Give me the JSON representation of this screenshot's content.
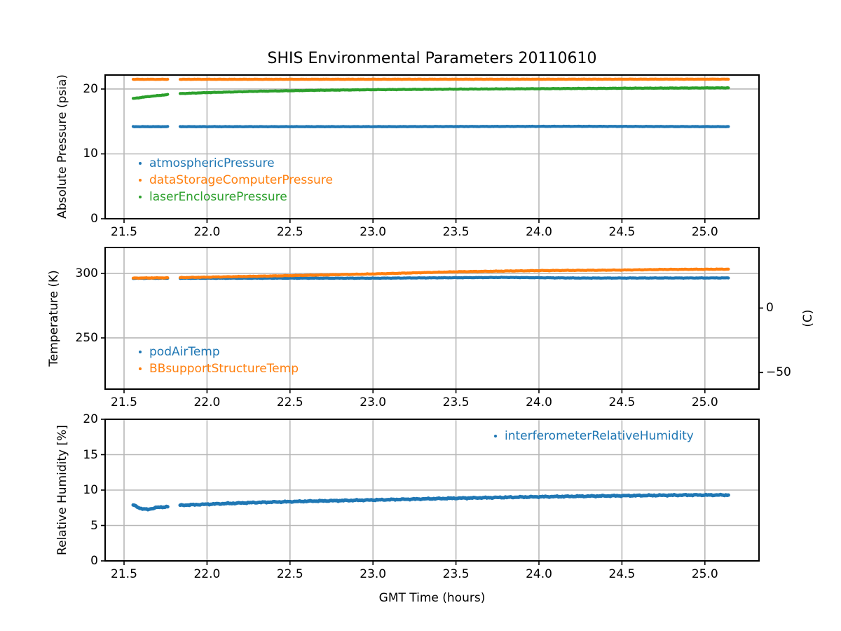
{
  "title": "SHIS Environmental Parameters 20110610",
  "xlabel": "GMT Time (hours)",
  "colors": {
    "blue": "#1f77b4",
    "orange": "#ff7f0e",
    "green": "#2ca02c",
    "grid": "#b8b8b8",
    "axis": "#000000"
  },
  "xlim": [
    21.386,
    25.326
  ],
  "xticks": [
    {
      "v": 21.5,
      "label": "21.5"
    },
    {
      "v": 22.0,
      "label": "22.0"
    },
    {
      "v": 22.5,
      "label": "22.5"
    },
    {
      "v": 23.0,
      "label": "23.0"
    },
    {
      "v": 23.5,
      "label": "23.5"
    },
    {
      "v": 24.0,
      "label": "24.0"
    },
    {
      "v": 24.5,
      "label": "24.5"
    },
    {
      "v": 25.0,
      "label": "25.0"
    }
  ],
  "gap": [
    21.766,
    21.838
  ],
  "chart_data": [
    {
      "type": "line",
      "title": "SHIS Environmental Parameters 20110610",
      "ylabel": "Absolute Pressure (psia)",
      "ylim": [
        0,
        22.16
      ],
      "yticks": [
        {
          "v": 0,
          "label": "0"
        },
        {
          "v": 10,
          "label": "10"
        },
        {
          "v": 20,
          "label": "20"
        }
      ],
      "x_range": [
        21.555,
        25.143
      ],
      "legend_position": "lower left inside",
      "series": [
        {
          "name": "atmosphericPressure",
          "color": "#1f77b4",
          "points": [
            [
              21.555,
              14.2
            ],
            [
              23.0,
              14.2
            ],
            [
              24.2,
              14.25
            ],
            [
              25.143,
              14.2
            ]
          ]
        },
        {
          "name": "dataStorageComputerPressure",
          "color": "#ff7f0e",
          "points": [
            [
              21.555,
              21.5
            ],
            [
              25.143,
              21.52
            ]
          ]
        },
        {
          "name": "laserEnclosurePressure",
          "color": "#2ca02c",
          "points": [
            [
              21.555,
              18.55
            ],
            [
              21.65,
              18.85
            ],
            [
              21.766,
              19.15
            ],
            [
              21.838,
              19.3
            ],
            [
              22.0,
              19.45
            ],
            [
              22.3,
              19.65
            ],
            [
              22.65,
              19.8
            ],
            [
              23.0,
              19.9
            ],
            [
              23.5,
              19.98
            ],
            [
              24.0,
              20.05
            ],
            [
              24.5,
              20.12
            ],
            [
              25.143,
              20.18
            ]
          ]
        }
      ]
    },
    {
      "type": "line",
      "ylabel": "Temperature (K)",
      "ylabel_right": "(C)",
      "ylim": [
        210.3,
        320.1
      ],
      "yticks": [
        {
          "v": 250,
          "label": "250"
        },
        {
          "v": 300,
          "label": "300"
        }
      ],
      "yticks_right": [
        {
          "v": 273.15,
          "label": "0"
        },
        {
          "v": 223.15,
          "label": "−50"
        }
      ],
      "x_range": [
        21.555,
        25.143
      ],
      "legend_position": "lower left inside",
      "series": [
        {
          "name": "podAirTemp",
          "color": "#1f77b4",
          "points": [
            [
              21.555,
              296.2
            ],
            [
              22.5,
              296.3
            ],
            [
              23.0,
              296.3
            ],
            [
              23.8,
              296.9
            ],
            [
              24.25,
              296.4
            ],
            [
              25.143,
              296.5
            ]
          ]
        },
        {
          "name": "BBsupportStructureTemp",
          "color": "#ff7f0e",
          "points": [
            [
              21.555,
              296.4
            ],
            [
              21.766,
              296.6
            ],
            [
              21.838,
              296.8
            ],
            [
              22.0,
              297.1
            ],
            [
              22.5,
              298.3
            ],
            [
              23.0,
              299.6
            ],
            [
              23.5,
              301.3
            ],
            [
              24.0,
              302.2
            ],
            [
              24.5,
              302.6
            ],
            [
              24.75,
              303.1
            ],
            [
              25.143,
              303.3
            ]
          ]
        }
      ]
    },
    {
      "type": "line",
      "ylabel": "Relative Humidity [%]",
      "ylim": [
        0,
        20
      ],
      "yticks": [
        {
          "v": 0,
          "label": "0"
        },
        {
          "v": 5,
          "label": "5"
        },
        {
          "v": 10,
          "label": "10"
        },
        {
          "v": 15,
          "label": "15"
        },
        {
          "v": 20,
          "label": "20"
        }
      ],
      "x_range": [
        21.555,
        25.143
      ],
      "legend_position": "upper right inside",
      "series": [
        {
          "name": "interferometerRelativeHumidity",
          "color": "#1f77b4",
          "points": [
            [
              21.555,
              7.9
            ],
            [
              21.6,
              7.4
            ],
            [
              21.64,
              7.25
            ],
            [
              21.7,
              7.55
            ],
            [
              21.766,
              7.65
            ],
            [
              21.838,
              7.85
            ],
            [
              22.0,
              8.0
            ],
            [
              22.3,
              8.25
            ],
            [
              22.65,
              8.45
            ],
            [
              23.0,
              8.6
            ],
            [
              23.5,
              8.85
            ],
            [
              24.0,
              9.05
            ],
            [
              24.5,
              9.2
            ],
            [
              24.9,
              9.3
            ],
            [
              25.143,
              9.3
            ]
          ]
        }
      ]
    }
  ]
}
